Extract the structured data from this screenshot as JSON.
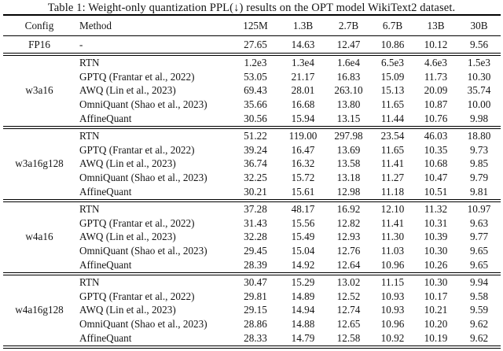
{
  "title": "Table 1: Weight-only quantization PPL(↓) results on the OPT model WikiText2 dataset.",
  "colors": {
    "background": "#ffffff",
    "text": "#151515",
    "rule": "#000000"
  },
  "table": {
    "headers": {
      "config": "Config",
      "method": "Method",
      "sizes": [
        "125M",
        "1.3B",
        "2.7B",
        "6.7B",
        "13B",
        "30B"
      ]
    },
    "fp16": {
      "config": "FP16",
      "method": "-",
      "values": [
        "27.65",
        "14.63",
        "12.47",
        "10.86",
        "10.12",
        "9.56"
      ]
    },
    "sections": [
      {
        "config": "w3a16",
        "rows": [
          {
            "method": "RTN",
            "values": [
              "1.2e3",
              "1.3e4",
              "1.6e4",
              "6.5e3",
              "4.6e3",
              "1.5e3"
            ]
          },
          {
            "method": "GPTQ (Frantar et al., 2022)",
            "values": [
              "53.05",
              "21.17",
              "16.83",
              "15.09",
              "11.73",
              "10.30"
            ]
          },
          {
            "method": "AWQ (Lin et al., 2023)",
            "values": [
              "69.43",
              "28.01",
              "263.10",
              "15.13",
              "20.09",
              "35.74"
            ]
          },
          {
            "method": "OmniQuant (Shao et al., 2023)",
            "values": [
              "35.66",
              "16.68",
              "13.80",
              "11.65",
              "10.87",
              "10.00"
            ]
          },
          {
            "method": "AffineQuant",
            "values": [
              "30.56",
              "15.94",
              "13.15",
              "11.44",
              "10.76",
              "9.98"
            ]
          }
        ]
      },
      {
        "config": "w3a16g128",
        "rows": [
          {
            "method": "RTN",
            "values": [
              "51.22",
              "119.00",
              "297.98",
              "23.54",
              "46.03",
              "18.80"
            ]
          },
          {
            "method": "GPTQ (Frantar et al., 2022)",
            "values": [
              "39.24",
              "16.47",
              "13.69",
              "11.65",
              "10.35",
              "9.73"
            ]
          },
          {
            "method": "AWQ (Lin et al., 2023)",
            "values": [
              "36.74",
              "16.32",
              "13.58",
              "11.41",
              "10.68",
              "9.85"
            ]
          },
          {
            "method": "OmniQuant (Shao et al., 2023)",
            "values": [
              "32.25",
              "15.72",
              "13.18",
              "11.27",
              "10.47",
              "9.79"
            ]
          },
          {
            "method": "AffineQuant",
            "values": [
              "30.21",
              "15.61",
              "12.98",
              "11.18",
              "10.51",
              "9.81"
            ]
          }
        ]
      },
      {
        "config": "w4a16",
        "rows": [
          {
            "method": "RTN",
            "values": [
              "37.28",
              "48.17",
              "16.92",
              "12.10",
              "11.32",
              "10.97"
            ]
          },
          {
            "method": "GPTQ (Frantar et al., 2022)",
            "values": [
              "31.43",
              "15.56",
              "12.82",
              "11.41",
              "10.31",
              "9.63"
            ]
          },
          {
            "method": "AWQ (Lin et al., 2023)",
            "values": [
              "32.28",
              "15.49",
              "12.93",
              "11.30",
              "10.39",
              "9.77"
            ]
          },
          {
            "method": "OmniQuant (Shao et al., 2023)",
            "values": [
              "29.45",
              "15.04",
              "12.76",
              "11.03",
              "10.30",
              "9.65"
            ]
          },
          {
            "method": "AffineQuant",
            "values": [
              "28.39",
              "14.92",
              "12.64",
              "10.96",
              "10.26",
              "9.65"
            ]
          }
        ]
      },
      {
        "config": "w4a16g128",
        "rows": [
          {
            "method": "RTN",
            "values": [
              "30.47",
              "15.29",
              "13.02",
              "11.15",
              "10.30",
              "9.94"
            ]
          },
          {
            "method": "GPTQ (Frantar et al., 2022)",
            "values": [
              "29.81",
              "14.89",
              "12.52",
              "10.93",
              "10.17",
              "9.58"
            ]
          },
          {
            "method": "AWQ (Lin et al., 2023)",
            "values": [
              "29.15",
              "14.94",
              "12.74",
              "10.93",
              "10.21",
              "9.59"
            ]
          },
          {
            "method": "OmniQuant (Shao et al., 2023)",
            "values": [
              "28.86",
              "14.88",
              "12.65",
              "10.96",
              "10.20",
              "9.62"
            ]
          },
          {
            "method": "AffineQuant",
            "values": [
              "28.33",
              "14.79",
              "12.58",
              "10.92",
              "10.19",
              "9.62"
            ]
          }
        ]
      }
    ]
  }
}
